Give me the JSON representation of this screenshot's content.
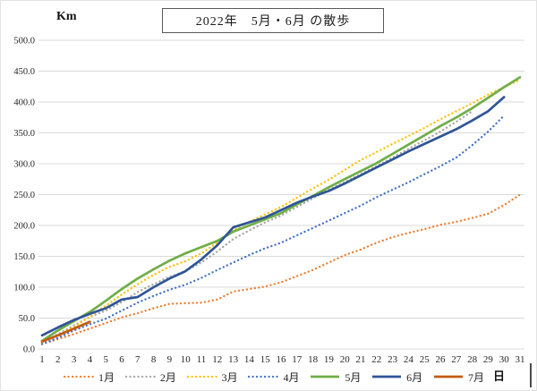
{
  "chart_data": {
    "type": "line",
    "title": "2022年　5月・6月 の散歩",
    "ylabel": "Km",
    "xlabel": "日",
    "ylim": [
      0,
      500
    ],
    "ytick_step": 50,
    "grid": true,
    "legend_position": "bottom",
    "x_days": [
      1,
      2,
      3,
      4,
      5,
      6,
      7,
      8,
      9,
      10,
      11,
      12,
      13,
      14,
      15,
      16,
      17,
      18,
      19,
      20,
      21,
      22,
      23,
      24,
      25,
      26,
      27,
      28,
      29,
      30,
      31
    ],
    "colors": {
      "grid": "#d9d9d9",
      "tick_text": "#262626"
    },
    "series": [
      {
        "name": "1月",
        "color": "#ED7D31",
        "style": "dotted",
        "values": [
          8,
          16,
          24,
          33,
          42,
          51,
          58,
          66,
          73,
          74,
          75,
          80,
          93,
          97,
          101,
          108,
          118,
          128,
          140,
          152,
          161,
          172,
          181,
          188,
          194,
          201,
          206,
          212,
          219,
          233,
          250
        ]
      },
      {
        "name": "2月",
        "color": "#A5A5A5",
        "style": "dotted",
        "values": [
          10,
          24,
          38,
          52,
          62,
          76,
          92,
          105,
          117,
          126,
          140,
          158,
          178,
          192,
          205,
          216,
          230,
          244,
          258,
          270,
          283,
          296,
          310,
          324,
          338,
          352,
          368,
          385
        ]
      },
      {
        "name": "3月",
        "color": "#FFC000",
        "style": "dotted",
        "values": [
          10,
          22,
          36,
          52,
          70,
          88,
          105,
          120,
          133,
          142,
          155,
          172,
          192,
          206,
          218,
          230,
          245,
          260,
          274,
          290,
          306,
          319,
          332,
          345,
          358,
          372,
          385,
          398,
          412,
          424,
          436
        ]
      },
      {
        "name": "4月",
        "color": "#4472C4",
        "style": "dotted",
        "values": [
          8,
          18,
          30,
          40,
          49,
          62,
          75,
          86,
          96,
          104,
          115,
          128,
          140,
          152,
          163,
          172,
          184,
          196,
          208,
          220,
          232,
          246,
          258,
          270,
          283,
          296,
          310,
          330,
          352,
          378
        ]
      },
      {
        "name": "5月",
        "color": "#70AD47",
        "style": "solid",
        "values": [
          13,
          30,
          45,
          60,
          78,
          97,
          114,
          129,
          143,
          155,
          165,
          175,
          190,
          200,
          210,
          220,
          234,
          248,
          262,
          275,
          288,
          301,
          316,
          331,
          346,
          361,
          375,
          390,
          407,
          424,
          440
        ]
      },
      {
        "name": "6月",
        "color": "#2F5597",
        "style": "solid",
        "values": [
          22,
          35,
          47,
          57,
          66,
          80,
          84,
          100,
          114,
          126,
          145,
          168,
          197,
          205,
          213,
          225,
          237,
          247,
          256,
          268,
          281,
          294,
          307,
          320,
          332,
          344,
          356,
          370,
          385,
          408
        ]
      },
      {
        "name": "7月",
        "color": "#C55A11",
        "style": "solid",
        "values": [
          12,
          22,
          33,
          44
        ]
      }
    ]
  }
}
